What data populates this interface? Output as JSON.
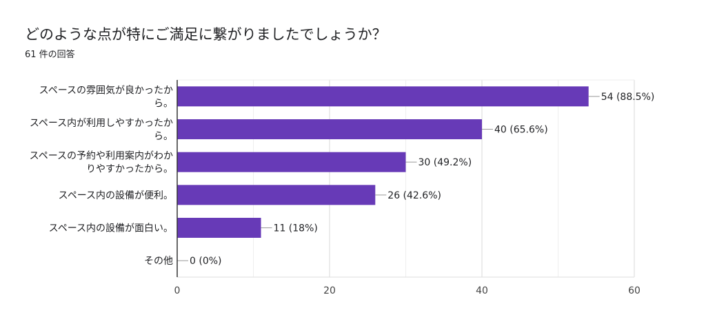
{
  "header": {
    "title": "どのような点が特にご満足に繋がりましたでしょうか？",
    "response_count": "61 件の回答"
  },
  "colors": {
    "bar": "#673ab7",
    "grid": "#e6e6e6",
    "axis": "#333333",
    "leader": "#999999"
  },
  "chart_data": {
    "type": "bar",
    "orientation": "horizontal",
    "title": "どのような点が特にご満足に繋がりましたでしょうか？",
    "subtitle": "61 件の回答",
    "categories": [
      [
        "スペースの雰囲気が良かったか",
        "ら。"
      ],
      [
        "スペース内が利用しやすかったか",
        "ら。"
      ],
      [
        "スペースの予約や利用案内がわか",
        "りやすかったから。"
      ],
      [
        "スペース内の設備が便利。"
      ],
      [
        "スペース内の設備が面白い。"
      ],
      [
        "その他"
      ]
    ],
    "values": [
      54,
      40,
      30,
      26,
      11,
      0
    ],
    "value_labels": [
      "54 (88.5%)",
      "40 (65.6%)",
      "30 (49.2%)",
      "26 (42.6%)",
      "11 (18%)",
      "0 (0%)"
    ],
    "xlim": [
      0,
      60
    ],
    "x_ticks": [
      0,
      20,
      40,
      60
    ],
    "grid": true
  }
}
